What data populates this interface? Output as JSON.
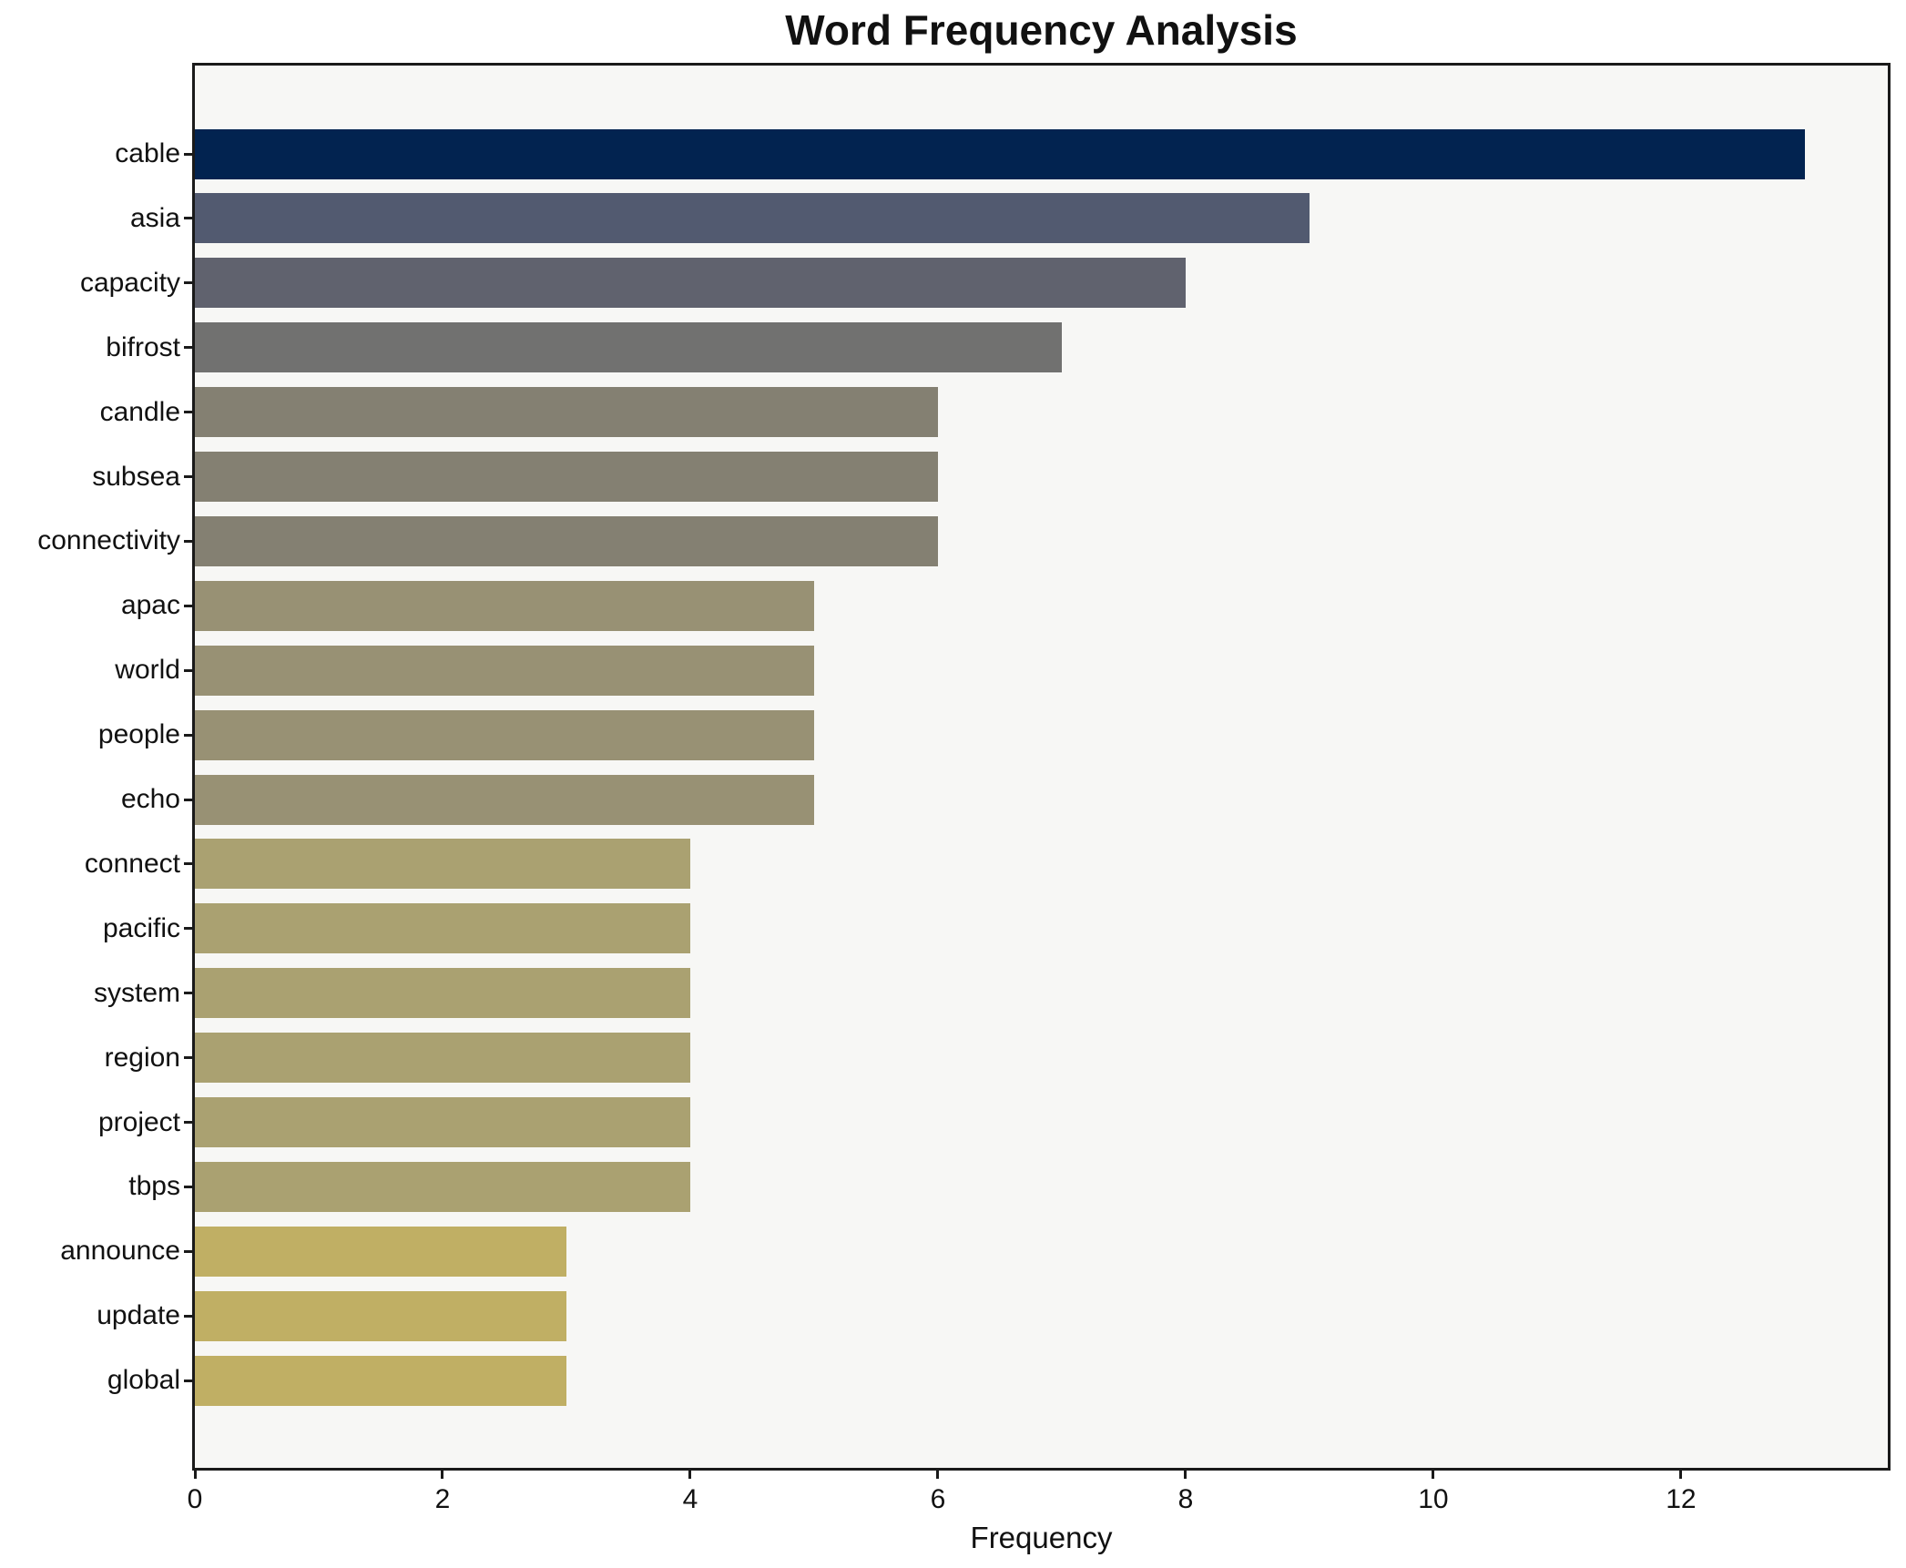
{
  "figure": {
    "title": "Word Frequency Analysis",
    "xlabel": "Frequency"
  },
  "chart_data": {
    "type": "bar",
    "orientation": "horizontal",
    "title": "Word Frequency Analysis",
    "xlabel": "Frequency",
    "ylabel": "",
    "categories": [
      "cable",
      "asia",
      "capacity",
      "bifrost",
      "candle",
      "subsea",
      "connectivity",
      "apac",
      "world",
      "people",
      "echo",
      "connect",
      "pacific",
      "system",
      "region",
      "project",
      "tbps",
      "announce",
      "update",
      "global"
    ],
    "values": [
      13,
      9,
      8,
      7,
      6,
      6,
      6,
      5,
      5,
      5,
      5,
      4,
      4,
      4,
      4,
      4,
      4,
      3,
      3,
      3
    ],
    "bar_colors": [
      "#022350",
      "#525a70",
      "#60626e",
      "#717170",
      "#848072",
      "#848072",
      "#848072",
      "#989174",
      "#989174",
      "#989174",
      "#989174",
      "#aaa171",
      "#aaa171",
      "#aaa171",
      "#aaa171",
      "#aaa171",
      "#aaa171",
      "#c0af64",
      "#c0af64",
      "#c0af64"
    ],
    "xlim": [
      0,
      13.67
    ],
    "x_ticks": [
      0,
      2,
      4,
      6,
      8,
      10,
      12
    ],
    "grid": false,
    "legend_position": "none",
    "plot_background": "#f7f7f5",
    "figure_background": "#ffffff",
    "spine_color": "#1a1a1a",
    "text_color": "#111111"
  }
}
